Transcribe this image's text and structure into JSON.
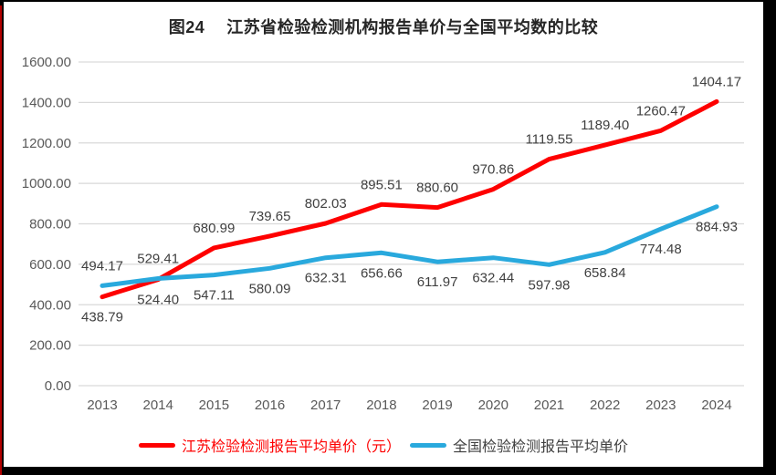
{
  "title_prefix": "图24",
  "title_main": "江苏省检验检测机构报告单价与全国平均数的比较",
  "chart_data": {
    "type": "line",
    "title": "图24 江苏省检验检测机构报告单价与全国平均数的比较",
    "x": [
      "2013",
      "2014",
      "2015",
      "2016",
      "2017",
      "2018",
      "2019",
      "2020",
      "2021",
      "2022",
      "2023",
      "2024"
    ],
    "series": [
      {
        "name": "江苏检验检测报告平均单价（元）",
        "color": "#fe0000",
        "legend_text_color": "#fe0000",
        "values": [
          438.79,
          524.4,
          680.99,
          739.65,
          802.03,
          895.51,
          880.6,
          970.86,
          1119.55,
          1189.4,
          1260.47,
          1404.17
        ],
        "labels": [
          "438.79",
          "524.40",
          "680.99",
          "739.65",
          "802.03",
          "895.51",
          "880.60",
          "970.86",
          "1119.55",
          "1189.40",
          "1260.47",
          "1404.17"
        ],
        "label_side": [
          "below",
          "below",
          "above",
          "above",
          "above",
          "above",
          "above",
          "above",
          "above",
          "above",
          "above",
          "above"
        ]
      },
      {
        "name": "全国检验检测报告平均单价",
        "color": "#29a9dd",
        "legend_text_color": "#404040",
        "values": [
          494.17,
          529.41,
          547.11,
          580.09,
          632.31,
          656.66,
          611.97,
          632.44,
          597.98,
          658.84,
          774.48,
          884.93
        ],
        "labels": [
          "494.17",
          "529.41",
          "547.11",
          "580.09",
          "632.31",
          "656.66",
          "611.97",
          "632.44",
          "597.98",
          "658.84",
          "774.48",
          "884.93"
        ],
        "label_side": [
          "above",
          "above",
          "below",
          "below",
          "below",
          "below",
          "below",
          "below",
          "below",
          "below",
          "below",
          "below"
        ]
      }
    ],
    "xlabel": "",
    "ylabel": "",
    "ylim": [
      0,
      1600
    ],
    "ytick_step": 200,
    "ytick_labels": [
      "0.00",
      "200.00",
      "400.00",
      "600.00",
      "800.00",
      "1000.00",
      "1200.00",
      "1400.00",
      "1600.00"
    ],
    "grid": true,
    "legend_position": "bottom",
    "colors": {
      "gridline": "#d9d9d9",
      "axis_text": "#595959",
      "data_label": "#404040",
      "title_text": "#262626",
      "chart_background": "#ffffff",
      "page_background": "#000000",
      "left_stripe": "#b30000"
    }
  }
}
